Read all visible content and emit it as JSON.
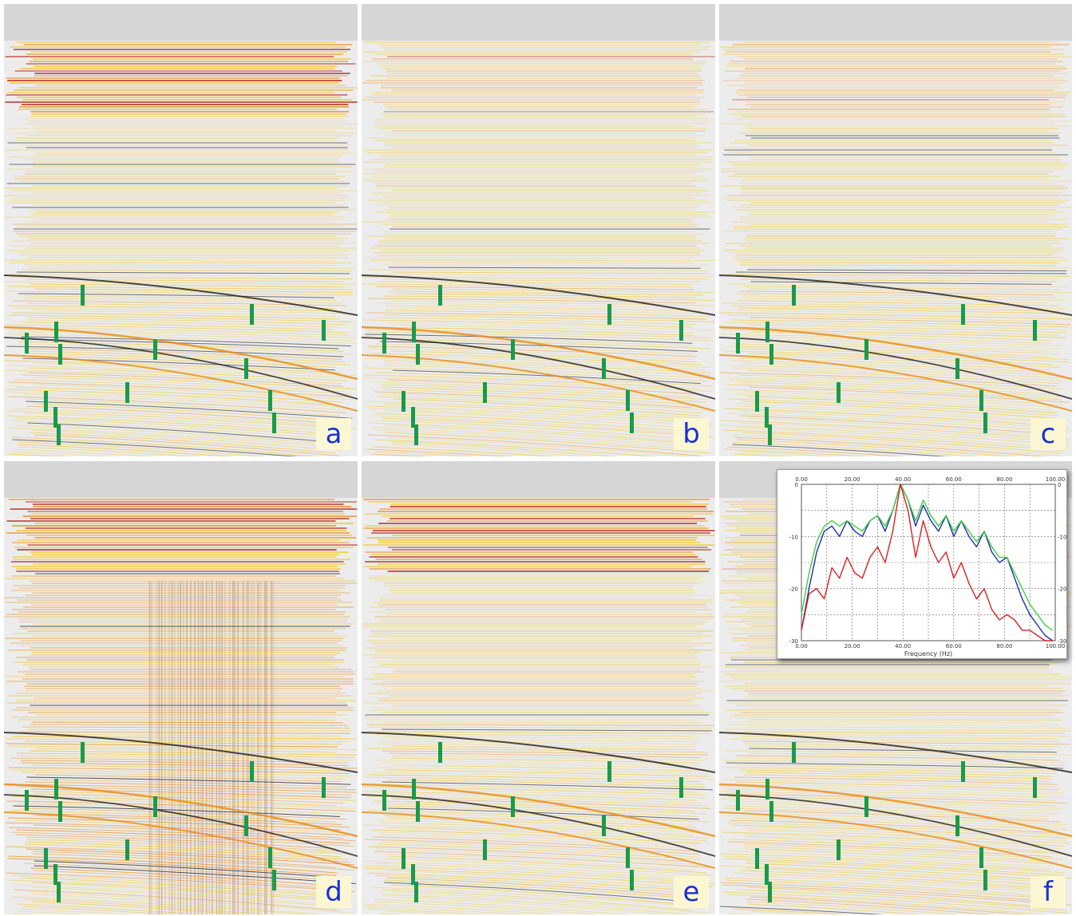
{
  "panels": [
    {
      "id": "a",
      "label": "a",
      "style": "strong-red"
    },
    {
      "id": "b",
      "label": "b",
      "style": "light"
    },
    {
      "id": "c",
      "label": "c",
      "style": "light"
    },
    {
      "id": "d",
      "label": "d",
      "style": "striped"
    },
    {
      "id": "e",
      "label": "e",
      "style": "mid"
    },
    {
      "id": "f",
      "label": "f",
      "style": "light"
    }
  ],
  "colors": {
    "background": "#ececec",
    "horizon_yellow": "#f2c20f",
    "horizon_orange": "#e88a14",
    "horizon_red": "#b41a10",
    "horizon_dark": "#1e1a1a",
    "marker_green": "#1a9a4a",
    "label_bg": "#fbf7d2",
    "label_text": "#1a2fd8"
  },
  "chart_data": {
    "type": "line",
    "x_ticks_top": [
      "0.00",
      "20.00",
      "40.00",
      "60.00",
      "80.00",
      "100.00"
    ],
    "x_ticks_bottom": [
      "0.00",
      "20.00",
      "40.00",
      "60.00",
      "80.00",
      "100.00"
    ],
    "y_ticks": [
      "0",
      "-10",
      "-20",
      "-30"
    ],
    "xlabel": "Frequency (Hz)",
    "ylabel": "",
    "xlim": [
      0,
      100
    ],
    "ylim": [
      -30,
      0
    ],
    "grid": true,
    "series": [
      {
        "color": "#1e2fb0",
        "x": [
          0,
          3,
          6,
          9,
          12,
          15,
          18,
          21,
          24,
          27,
          30,
          33,
          36,
          39,
          42,
          45,
          48,
          51,
          54,
          57,
          60,
          63,
          66,
          69,
          72,
          75,
          78,
          81,
          84,
          87,
          90,
          93,
          96,
          99
        ],
        "y": [
          -28,
          -20,
          -13,
          -9,
          -8,
          -10,
          -7,
          -9,
          -10,
          -7,
          -6,
          -9,
          -5,
          0,
          -3,
          -8,
          -4,
          -7,
          -9,
          -6,
          -10,
          -7,
          -10,
          -12,
          -9,
          -13,
          -15,
          -14,
          -18,
          -22,
          -25,
          -27,
          -29,
          -30
        ]
      },
      {
        "color": "#40d040",
        "x": [
          0,
          3,
          6,
          9,
          12,
          15,
          18,
          21,
          24,
          27,
          30,
          33,
          36,
          39,
          42,
          45,
          48,
          51,
          54,
          57,
          60,
          63,
          66,
          69,
          72,
          75,
          78,
          81,
          84,
          87,
          90,
          93,
          96,
          99
        ],
        "y": [
          -25,
          -17,
          -11,
          -8,
          -7,
          -8,
          -7,
          -8,
          -9,
          -7,
          -6,
          -8,
          -5,
          0,
          -3,
          -7,
          -3,
          -6,
          -8,
          -6,
          -9,
          -7,
          -9,
          -11,
          -9,
          -12,
          -14,
          -14,
          -17,
          -20,
          -23,
          -25,
          -27,
          -28
        ]
      },
      {
        "color": "#d82020",
        "x": [
          0,
          3,
          6,
          9,
          12,
          15,
          18,
          21,
          24,
          27,
          30,
          33,
          36,
          39,
          42,
          45,
          48,
          51,
          54,
          57,
          60,
          63,
          66,
          69,
          72,
          75,
          78,
          81,
          84,
          87,
          90,
          93,
          96,
          99
        ],
        "y": [
          -28,
          -21,
          -20,
          -22,
          -16,
          -18,
          -14,
          -17,
          -18,
          -14,
          -12,
          -15,
          -9,
          0,
          -5,
          -14,
          -7,
          -12,
          -15,
          -13,
          -18,
          -15,
          -19,
          -22,
          -20,
          -24,
          -26,
          -25,
          -26,
          -28,
          -28,
          -29,
          -30,
          -30
        ]
      }
    ]
  }
}
